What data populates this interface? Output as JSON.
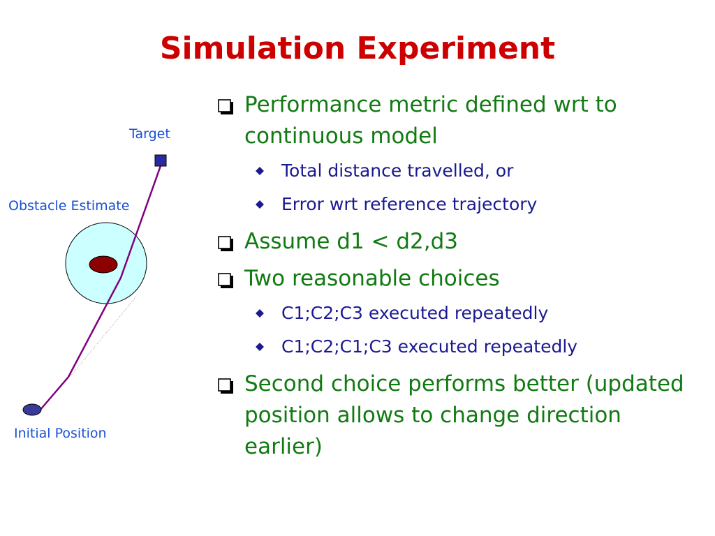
{
  "slide": {
    "title": "Simulation Experiment"
  },
  "figure": {
    "target_label": "Target",
    "obstacle_label": "Obstacle Estimate",
    "initial_label": "Initial Position",
    "colors": {
      "path": "#800080",
      "target": "#2a2aa0",
      "obstacle_zone": "#ccffff",
      "obstacle": "#8b0000",
      "start": "#3a3a9a",
      "label": "#1a4fd6"
    }
  },
  "bullets": [
    {
      "text": "Performance metric defined wrt to continuous model",
      "sub": [
        "Total distance travelled, or",
        "Error wrt reference trajectory"
      ]
    },
    {
      "text": "Assume d1 < d2,d3",
      "sub": []
    },
    {
      "text": "Two reasonable choices",
      "sub": [
        "C1;C2;C3 executed repeatedly",
        "C1;C2;C1;C3 executed repeatedly"
      ]
    },
    {
      "text": "Second choice performs better (updated position allows to change direction earlier)",
      "sub": []
    }
  ],
  "colors": {
    "title": "#cc0000",
    "level1": "#127a12",
    "level2": "#1a1a90"
  }
}
